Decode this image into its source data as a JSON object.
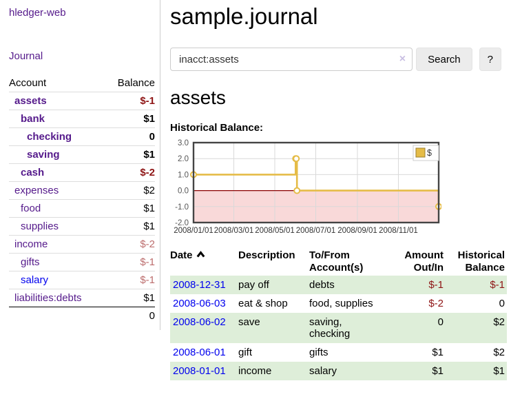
{
  "app_title": "hledger-web",
  "sidebar": {
    "journal_link": "Journal",
    "accounts_table": {
      "headers": [
        "Account",
        "Balance"
      ],
      "rows": [
        {
          "account": "assets",
          "balance": "$-1",
          "depth": 0,
          "current": true,
          "link_color": "purple",
          "balance_style": "neg-strong"
        },
        {
          "account": "bank",
          "balance": "$1",
          "depth": 1,
          "current": true,
          "link_color": "purple",
          "balance_style": "pos-strong"
        },
        {
          "account": "checking",
          "balance": "0",
          "depth": 2,
          "current": true,
          "link_color": "purple",
          "balance_style": "pos-strong"
        },
        {
          "account": "saving",
          "balance": "$1",
          "depth": 2,
          "current": true,
          "link_color": "purple",
          "balance_style": "pos-strong"
        },
        {
          "account": "cash",
          "balance": "$-2",
          "depth": 1,
          "current": true,
          "link_color": "purple",
          "balance_style": "neg-strong"
        },
        {
          "account": "expenses",
          "balance": "$2",
          "depth": 0,
          "current": false,
          "link_color": "purple",
          "balance_style": "pos"
        },
        {
          "account": "food",
          "balance": "$1",
          "depth": 1,
          "current": false,
          "link_color": "purple",
          "balance_style": "pos"
        },
        {
          "account": "supplies",
          "balance": "$1",
          "depth": 1,
          "current": false,
          "link_color": "purple",
          "balance_style": "pos"
        },
        {
          "account": "income",
          "balance": "$-2",
          "depth": 0,
          "current": false,
          "link_color": "purple",
          "balance_style": "neg-muted"
        },
        {
          "account": "gifts",
          "balance": "$-1",
          "depth": 1,
          "current": false,
          "link_color": "purple",
          "balance_style": "neg-muted"
        },
        {
          "account": "salary",
          "balance": "$-1",
          "depth": 1,
          "current": false,
          "link_color": "blue",
          "balance_style": "neg-muted"
        },
        {
          "account": "liabilities:debts",
          "balance": "$1",
          "depth": 0,
          "current": false,
          "link_color": "purple",
          "balance_style": "pos"
        }
      ],
      "total": "0"
    }
  },
  "main": {
    "title": "sample.journal",
    "search": {
      "value": "inacct:assets",
      "clear_icon": "×",
      "search_button": "Search",
      "help_button": "?"
    },
    "account_heading": "assets",
    "chart_heading": "Historical Balance:",
    "register": {
      "headers": [
        "Date",
        "Description",
        "To/From Account(s)",
        "Amount Out/In",
        "Historical Balance"
      ],
      "sort": {
        "column": "Date",
        "direction": "ascending"
      },
      "rows": [
        {
          "date": "2008-12-31",
          "description": "pay off",
          "accounts": "debts",
          "amount": "$-1",
          "amount_negative": true,
          "balance": "$-1",
          "balance_negative": true,
          "stripe": true
        },
        {
          "date": "2008-06-03",
          "description": "eat & shop",
          "accounts": "food, supplies",
          "amount": "$-2",
          "amount_negative": true,
          "balance": "0",
          "balance_negative": false,
          "stripe": false
        },
        {
          "date": "2008-06-02",
          "description": "save",
          "accounts": "saving,\nchecking",
          "amount": "0",
          "amount_negative": false,
          "balance": "$2",
          "balance_negative": false,
          "stripe": true
        },
        {
          "date": "2008-06-01",
          "description": "gift",
          "accounts": "gifts",
          "amount": "$1",
          "amount_negative": false,
          "balance": "$2",
          "balance_negative": false,
          "stripe": false
        },
        {
          "date": "2008-01-01",
          "description": "income",
          "accounts": "salary",
          "amount": "$1",
          "amount_negative": false,
          "balance": "$1",
          "balance_negative": false,
          "stripe": true
        }
      ]
    }
  },
  "chart_data": {
    "type": "line",
    "title": "Historical Balance:",
    "step": true,
    "series": [
      {
        "name": "$",
        "dates": [
          "2008-01-01",
          "2008-06-01",
          "2008-06-02",
          "2008-06-03",
          "2008-12-31"
        ],
        "days": [
          0,
          152,
          153,
          154,
          365
        ],
        "values": [
          1,
          2,
          2,
          0,
          -1
        ]
      }
    ],
    "x_ticks": {
      "labels": [
        "2008/01/01",
        "2008/03/01",
        "2008/05/01",
        "2008/07/01",
        "2008/09/01",
        "2008/11/01"
      ],
      "days": [
        0,
        60,
        121,
        182,
        244,
        305
      ]
    },
    "x_range_days": [
      0,
      365
    ],
    "y_ticks": [
      3.0,
      2.0,
      1.0,
      0.0,
      -1.0,
      -2.0
    ],
    "ylim": [
      -2,
      3
    ],
    "grid": true,
    "legend": {
      "label": "$",
      "position": "top-right"
    },
    "negative_region_shaded": true
  },
  "colors": {
    "link_purple": "#551a8b",
    "link_blue": "#0000ee",
    "negative_strong": "#8e1414",
    "negative_muted": "#bc6d6d",
    "row_stripe_green": "#deeed9",
    "chart_line_gold": "#e5bc47",
    "chart_negative_fill": "#f9d9d9",
    "chart_zero_line": "#8b0000",
    "chart_border": "#444444",
    "grid_line": "#d9d9d9",
    "button_bg": "#ececec"
  }
}
